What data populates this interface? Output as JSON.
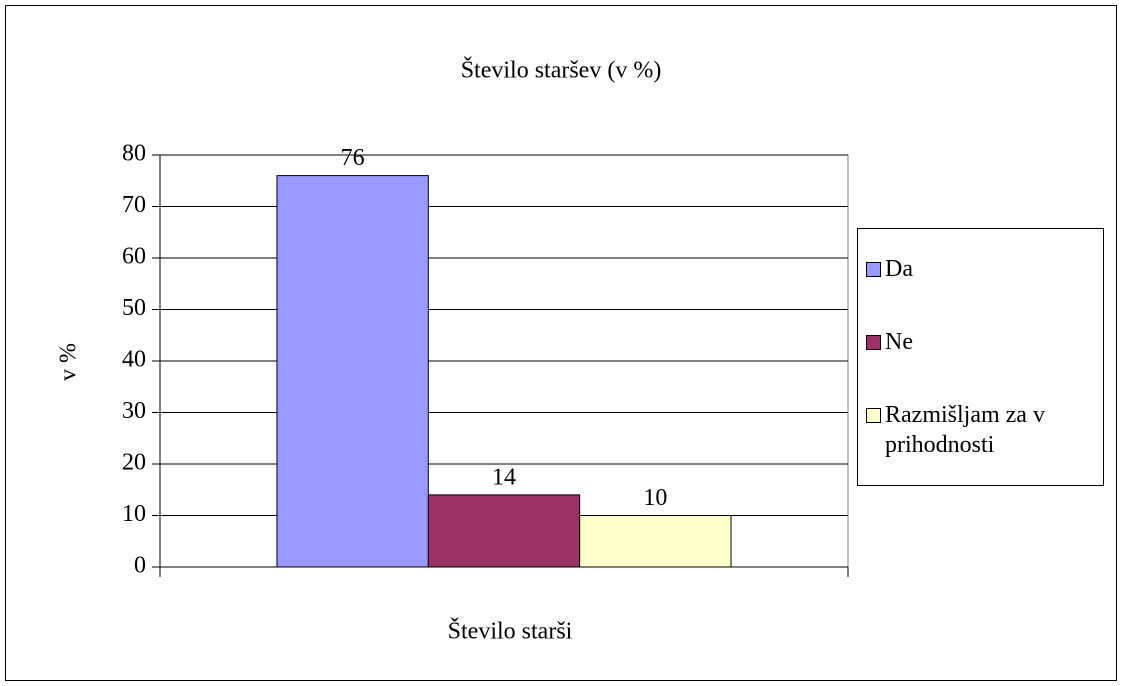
{
  "chart_data": {
    "type": "bar",
    "title": "Število staršev (v %)",
    "x_label": "Število starši",
    "y_label": "v %",
    "categories": [
      "Število starši"
    ],
    "series": [
      {
        "name": "Da",
        "color": "#9999ff",
        "values": [
          76
        ]
      },
      {
        "name": "Ne",
        "color": "#993366",
        "values": [
          14
        ]
      },
      {
        "name": "Razmišljam za v prihodnosti",
        "color": "#ffffcc",
        "values": [
          10
        ]
      }
    ],
    "ylim": [
      0,
      80
    ],
    "yticks": [
      0,
      10,
      20,
      30,
      40,
      50,
      60,
      70,
      80
    ],
    "grid": true,
    "legend": "right"
  }
}
